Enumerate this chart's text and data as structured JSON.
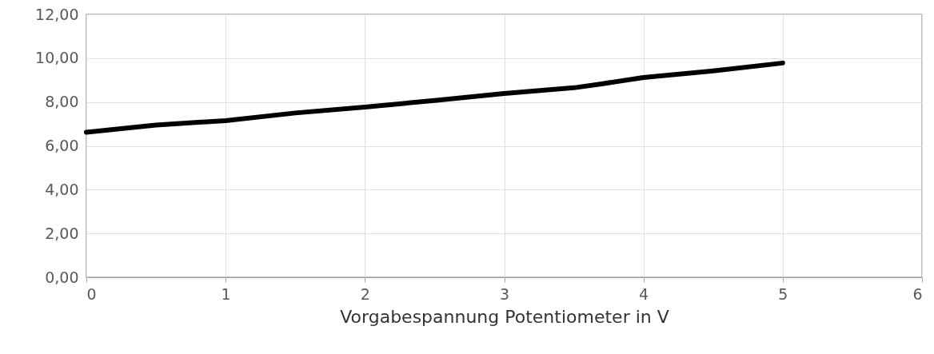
{
  "chart_data": {
    "type": "line",
    "xlabel": "Vorgabespannung Potentiometer in V",
    "x": [
      0,
      0.5,
      1,
      1.5,
      2,
      2.5,
      3,
      3.5,
      3.7,
      4,
      4.5,
      5
    ],
    "series": [
      {
        "color": "#000000",
        "values": [
          6.62,
          6.95,
          7.15,
          7.5,
          7.77,
          8.07,
          8.39,
          8.65,
          8.83,
          9.12,
          9.42,
          9.78
        ]
      }
    ],
    "xlim": [
      0,
      6
    ],
    "xticks": [
      0,
      1,
      2,
      3,
      4,
      5,
      6
    ],
    "ylim": [
      0,
      12
    ],
    "yticks": [
      {
        "value": 0,
        "label": "0,00"
      },
      {
        "value": 2,
        "label": "2,00"
      },
      {
        "value": 4,
        "label": "4,00"
      },
      {
        "value": 6,
        "label": "6,00"
      },
      {
        "value": 8,
        "label": "8,00"
      },
      {
        "value": 10,
        "label": "10,00"
      },
      {
        "value": 12,
        "label": "12,00"
      }
    ],
    "grid": true,
    "marker": "none",
    "line_style": "solid"
  }
}
